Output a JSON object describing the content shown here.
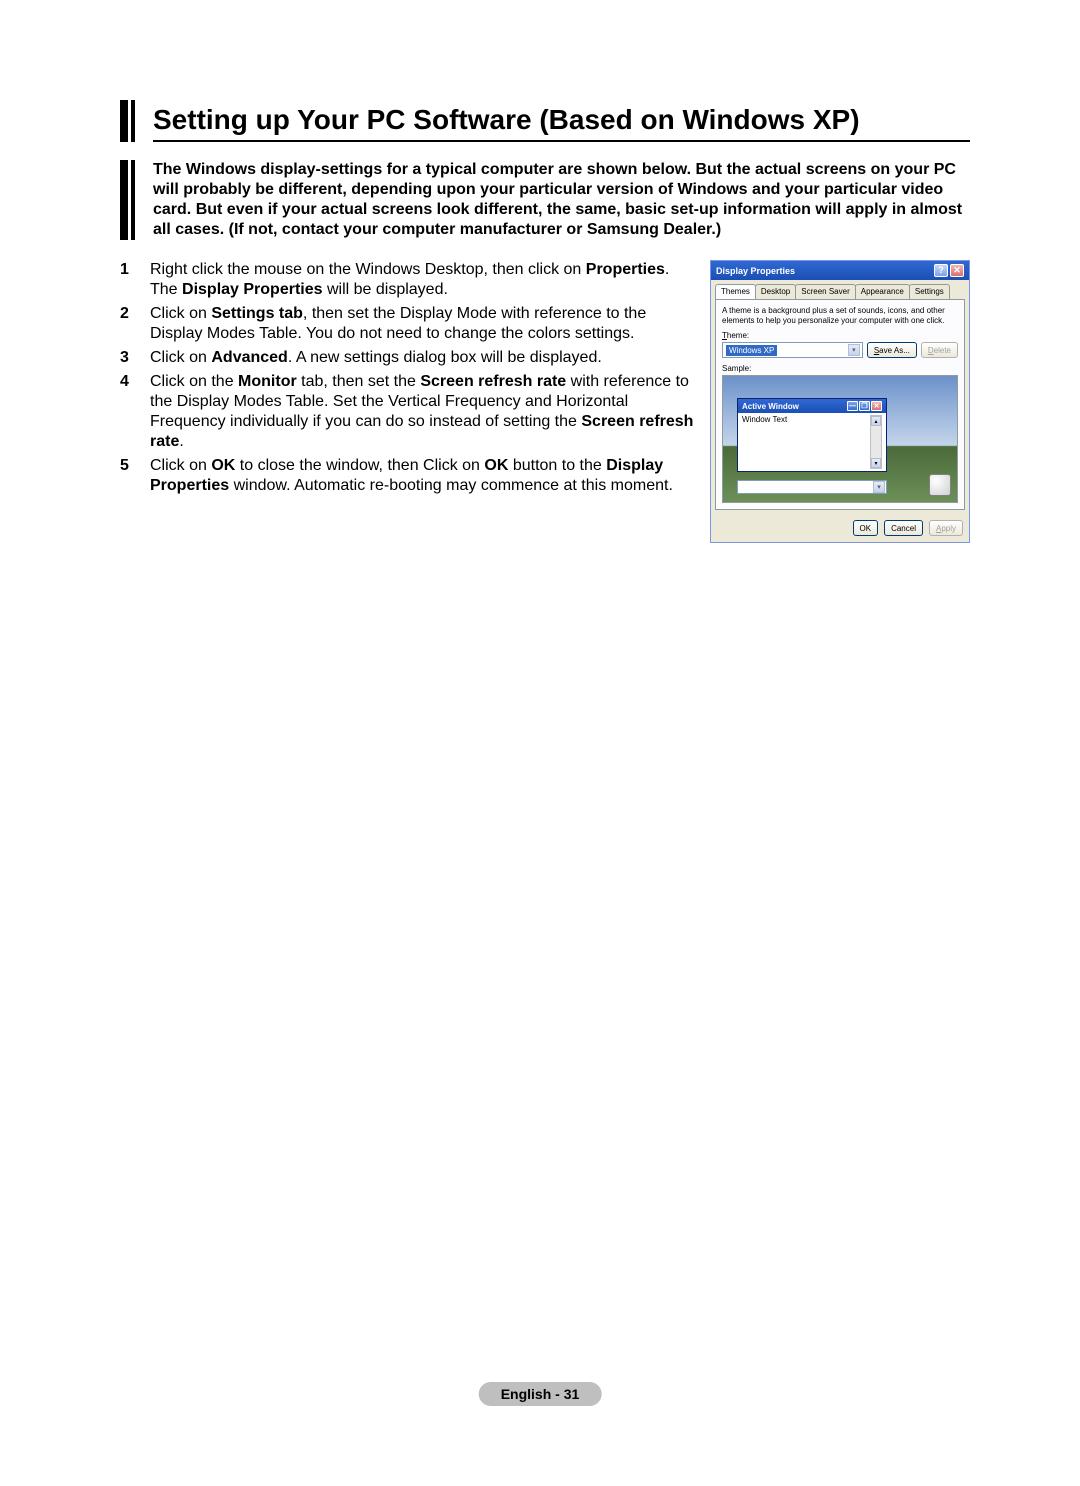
{
  "title": "Setting up Your PC Software (Based on Windows XP)",
  "intro": "The Windows display-settings for a typical computer are shown below. But the actual screens on your PC will probably be different, depending upon your particular version of Windows and your particular video card. But even if your actual screens look different, the same, basic set-up information will apply in almost all cases. (If not, contact your computer manufacturer or Samsung Dealer.)",
  "steps": {
    "s1": {
      "num": "1",
      "a": "Right click the mouse on the Windows Desktop, then click on ",
      "b": "Properties",
      "c": ".",
      "d": "The ",
      "e": "Display Properties",
      "f": " will be displayed."
    },
    "s2": {
      "num": "2",
      "a": "Click on ",
      "b": "Settings tab",
      "c": ", then set the Display Mode with reference to the Display Modes Table. You do not need to change the colors settings."
    },
    "s3": {
      "num": "3",
      "a": "Click on ",
      "b": "Advanced",
      "c": ". A new settings dialog box will be displayed."
    },
    "s4": {
      "num": "4",
      "a": "Click on the ",
      "b": "Monitor",
      "c": " tab, then set the ",
      "d": "Screen refresh rate",
      "e": " with reference to the Display Modes Table. Set the Vertical Frequency and Horizontal Frequency individually if you can do so instead of setting the ",
      "f": "Screen refresh rate",
      "g": "."
    },
    "s5": {
      "num": "5",
      "a": "Click on ",
      "b": "OK",
      "c": " to close the window, then Click on ",
      "d": "OK",
      "e": " button to the ",
      "f": "Display Properties",
      "g": " window. Automatic re-booting may commence at this moment."
    }
  },
  "dialog": {
    "title": "Display Properties",
    "tabs": {
      "t1": "Themes",
      "t2": "Desktop",
      "t3": "Screen Saver",
      "t4": "Appearance",
      "t5": "Settings"
    },
    "desc": "A theme is a background plus a set of sounds, icons, and other elements to help you personalize your computer with one click.",
    "theme_label_u": "T",
    "theme_label": "heme:",
    "theme_value": "Windows XP",
    "save_as_u": "S",
    "save_as": "ave As...",
    "delete_u": "D",
    "delete": "elete",
    "sample_label": "Sample:",
    "active_window": "Active Window",
    "window_text": "Window Text",
    "ok": "OK",
    "cancel": "Cancel",
    "apply_u": "A",
    "apply": "pply",
    "help_glyph": "?",
    "close_glyph": "✕",
    "min_glyph": "—",
    "max_glyph": "❐",
    "up_glyph": "▴",
    "down_glyph": "▾"
  },
  "footer": "English - 31",
  "colors": {
    "titlebar_grad_top": "#3168d5",
    "titlebar_grad_bottom": "#1b4fb3",
    "dialog_bg": "#ece9d8",
    "tab_border": "#919b9c",
    "footer_bg": "#bfbfbf"
  }
}
